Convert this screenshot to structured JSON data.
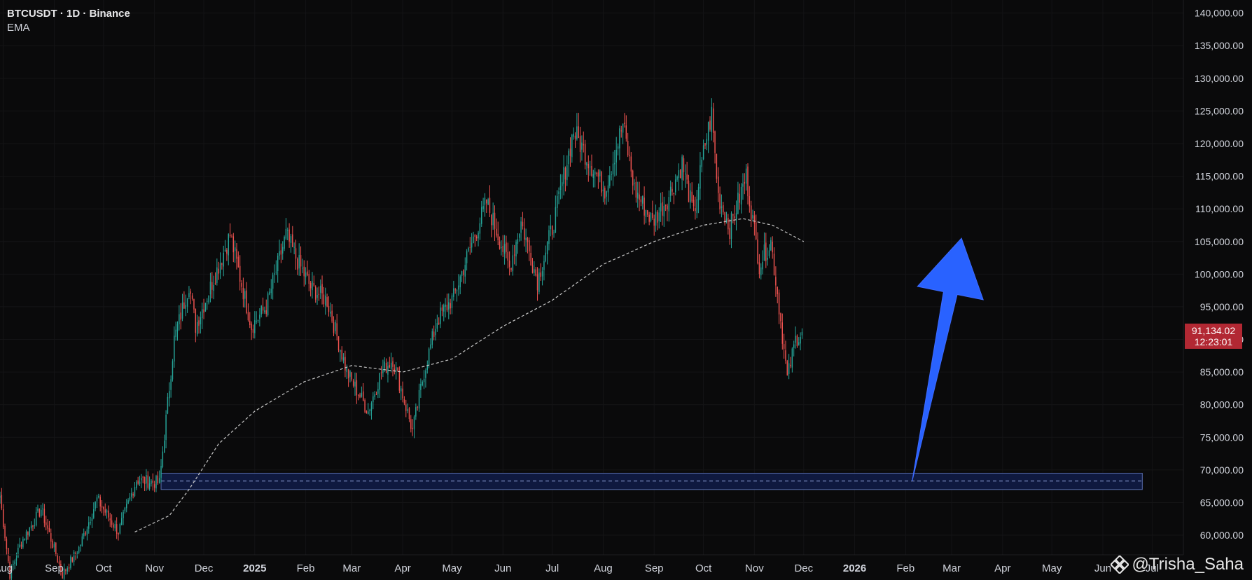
{
  "header": {
    "symbol_line": "BTCUSDT · 1D · Binance",
    "indicator": "EMA"
  },
  "watermark": {
    "text": "@Trisha_Saha",
    "logo_icon": "binance-diamond-icon"
  },
  "colors": {
    "background": "#0a0a0b",
    "up": "#26a69a",
    "down": "#ef5350",
    "ema": "#c8c8c8",
    "zone_fill": "#0f1b45",
    "zone_border": "#5a6fb0",
    "arrow": "#2962ff",
    "price_badge": "#b22833",
    "axis_text": "#d1d4dc"
  },
  "price_badge": {
    "price": "91,134.02",
    "countdown": "12:23:01"
  },
  "chart_data": {
    "type": "candlestick",
    "timeframe": "1D",
    "ylim": [
      57000,
      142000
    ],
    "x_range": [
      "2024-07-30",
      "2026-07-20"
    ],
    "y_ticks": [
      {
        "value": 60000,
        "label": "60,000.00"
      },
      {
        "value": 65000,
        "label": "65,000.00"
      },
      {
        "value": 70000,
        "label": "70,000.00"
      },
      {
        "value": 75000,
        "label": "75,000.00"
      },
      {
        "value": 80000,
        "label": "80,000.00"
      },
      {
        "value": 85000,
        "label": "85,000.00"
      },
      {
        "value": 90000,
        "label": "90,000.00"
      },
      {
        "value": 95000,
        "label": "95,000.00"
      },
      {
        "value": 100000,
        "label": "100,000.00"
      },
      {
        "value": 105000,
        "label": "105,000.00"
      },
      {
        "value": 110000,
        "label": "110,000.00"
      },
      {
        "value": 115000,
        "label": "115,000.00"
      },
      {
        "value": 120000,
        "label": "120,000.00"
      },
      {
        "value": 125000,
        "label": "125,000.00"
      },
      {
        "value": 130000,
        "label": "130,000.00"
      },
      {
        "value": 135000,
        "label": "135,000.00"
      },
      {
        "value": 140000,
        "label": "140,000.00"
      }
    ],
    "x_ticks": [
      {
        "date": "2024-08-01",
        "label": "Aug",
        "bold": false
      },
      {
        "date": "2024-09-01",
        "label": "Sep",
        "bold": false
      },
      {
        "date": "2024-10-01",
        "label": "Oct",
        "bold": false
      },
      {
        "date": "2024-11-01",
        "label": "Nov",
        "bold": false
      },
      {
        "date": "2024-12-01",
        "label": "Dec",
        "bold": false
      },
      {
        "date": "2025-01-01",
        "label": "2025",
        "bold": true
      },
      {
        "date": "2025-02-01",
        "label": "Feb",
        "bold": false
      },
      {
        "date": "2025-03-01",
        "label": "Mar",
        "bold": false
      },
      {
        "date": "2025-04-01",
        "label": "Apr",
        "bold": false
      },
      {
        "date": "2025-05-01",
        "label": "May",
        "bold": false
      },
      {
        "date": "2025-06-01",
        "label": "Jun",
        "bold": false
      },
      {
        "date": "2025-07-01",
        "label": "Jul",
        "bold": false
      },
      {
        "date": "2025-08-01",
        "label": "Aug",
        "bold": false
      },
      {
        "date": "2025-09-01",
        "label": "Sep",
        "bold": false
      },
      {
        "date": "2025-10-01",
        "label": "Oct",
        "bold": false
      },
      {
        "date": "2025-11-01",
        "label": "Nov",
        "bold": false
      },
      {
        "date": "2025-12-01",
        "label": "Dec",
        "bold": false
      },
      {
        "date": "2026-01-01",
        "label": "2026",
        "bold": true
      },
      {
        "date": "2026-02-01",
        "label": "Feb",
        "bold": false
      },
      {
        "date": "2026-03-01",
        "label": "Mar",
        "bold": false
      },
      {
        "date": "2026-04-01",
        "label": "Apr",
        "bold": false
      },
      {
        "date": "2026-05-01",
        "label": "May",
        "bold": false
      },
      {
        "date": "2026-06-01",
        "label": "Jun",
        "bold": false
      },
      {
        "date": "2026-07-01",
        "label": "Jul",
        "bold": false
      }
    ],
    "close_path": [
      [
        "2024-07-30",
        66000
      ],
      [
        "2024-08-05",
        54000
      ],
      [
        "2024-08-12",
        59000
      ],
      [
        "2024-08-24",
        64000
      ],
      [
        "2024-09-06",
        54000
      ],
      [
        "2024-09-16",
        58000
      ],
      [
        "2024-09-27",
        65500
      ],
      [
        "2024-10-10",
        60500
      ],
      [
        "2024-10-21",
        68500
      ],
      [
        "2024-11-04",
        68000
      ],
      [
        "2024-11-13",
        90000
      ],
      [
        "2024-11-22",
        98500
      ],
      [
        "2024-11-26",
        92000
      ],
      [
        "2024-12-05",
        98000
      ],
      [
        "2024-12-17",
        106000
      ],
      [
        "2024-12-30",
        92000
      ],
      [
        "2025-01-08",
        95000
      ],
      [
        "2025-01-20",
        106000
      ],
      [
        "2025-01-27",
        102000
      ],
      [
        "2025-02-04",
        98000
      ],
      [
        "2025-02-14",
        96000
      ],
      [
        "2025-02-26",
        85000
      ],
      [
        "2025-03-11",
        79000
      ],
      [
        "2025-03-19",
        85000
      ],
      [
        "2025-03-26",
        87000
      ],
      [
        "2025-04-07",
        76000
      ],
      [
        "2025-04-14",
        85000
      ],
      [
        "2025-04-22",
        93000
      ],
      [
        "2025-05-02",
        96500
      ],
      [
        "2025-05-12",
        104000
      ],
      [
        "2025-05-22",
        111000
      ],
      [
        "2025-06-05",
        101000
      ],
      [
        "2025-06-12",
        108000
      ],
      [
        "2025-06-22",
        99000
      ],
      [
        "2025-07-02",
        108000
      ],
      [
        "2025-07-14",
        122000
      ],
      [
        "2025-07-22",
        118000
      ],
      [
        "2025-08-02",
        113000
      ],
      [
        "2025-08-13",
        123000
      ],
      [
        "2025-08-20",
        113000
      ],
      [
        "2025-08-31",
        108000
      ],
      [
        "2025-09-10",
        112000
      ],
      [
        "2025-09-18",
        117000
      ],
      [
        "2025-09-25",
        109000
      ],
      [
        "2025-10-02",
        120000
      ],
      [
        "2025-10-06",
        124500
      ],
      [
        "2025-10-10",
        112000
      ],
      [
        "2025-10-17",
        107000
      ],
      [
        "2025-10-27",
        115000
      ],
      [
        "2025-11-04",
        101500
      ],
      [
        "2025-11-11",
        105000
      ],
      [
        "2025-11-16",
        95000
      ],
      [
        "2025-11-21",
        84000
      ],
      [
        "2025-11-26",
        90000
      ],
      [
        "2025-11-30",
        91134
      ]
    ],
    "ema_path": [
      [
        "2024-10-20",
        60500
      ],
      [
        "2024-11-10",
        63000
      ],
      [
        "2024-11-22",
        67000
      ],
      [
        "2024-12-10",
        74000
      ],
      [
        "2025-01-01",
        79000
      ],
      [
        "2025-01-31",
        83500
      ],
      [
        "2025-03-01",
        86000
      ],
      [
        "2025-04-01",
        85000
      ],
      [
        "2025-05-01",
        87000
      ],
      [
        "2025-06-01",
        92000
      ],
      [
        "2025-07-01",
        96000
      ],
      [
        "2025-08-01",
        101500
      ],
      [
        "2025-09-01",
        105000
      ],
      [
        "2025-10-01",
        107500
      ],
      [
        "2025-10-25",
        108500
      ],
      [
        "2025-11-12",
        107500
      ],
      [
        "2025-12-01",
        105000
      ]
    ],
    "zone": {
      "from": "2024-11-05",
      "to": "2026-06-25",
      "low": 67000,
      "high": 69500,
      "mid_line": 68300
    },
    "arrow": {
      "from_date": "2026-02-05",
      "from_price": 68300,
      "to_date": "2026-03-07",
      "to_price": 105500
    },
    "last_price": 91134.02
  }
}
